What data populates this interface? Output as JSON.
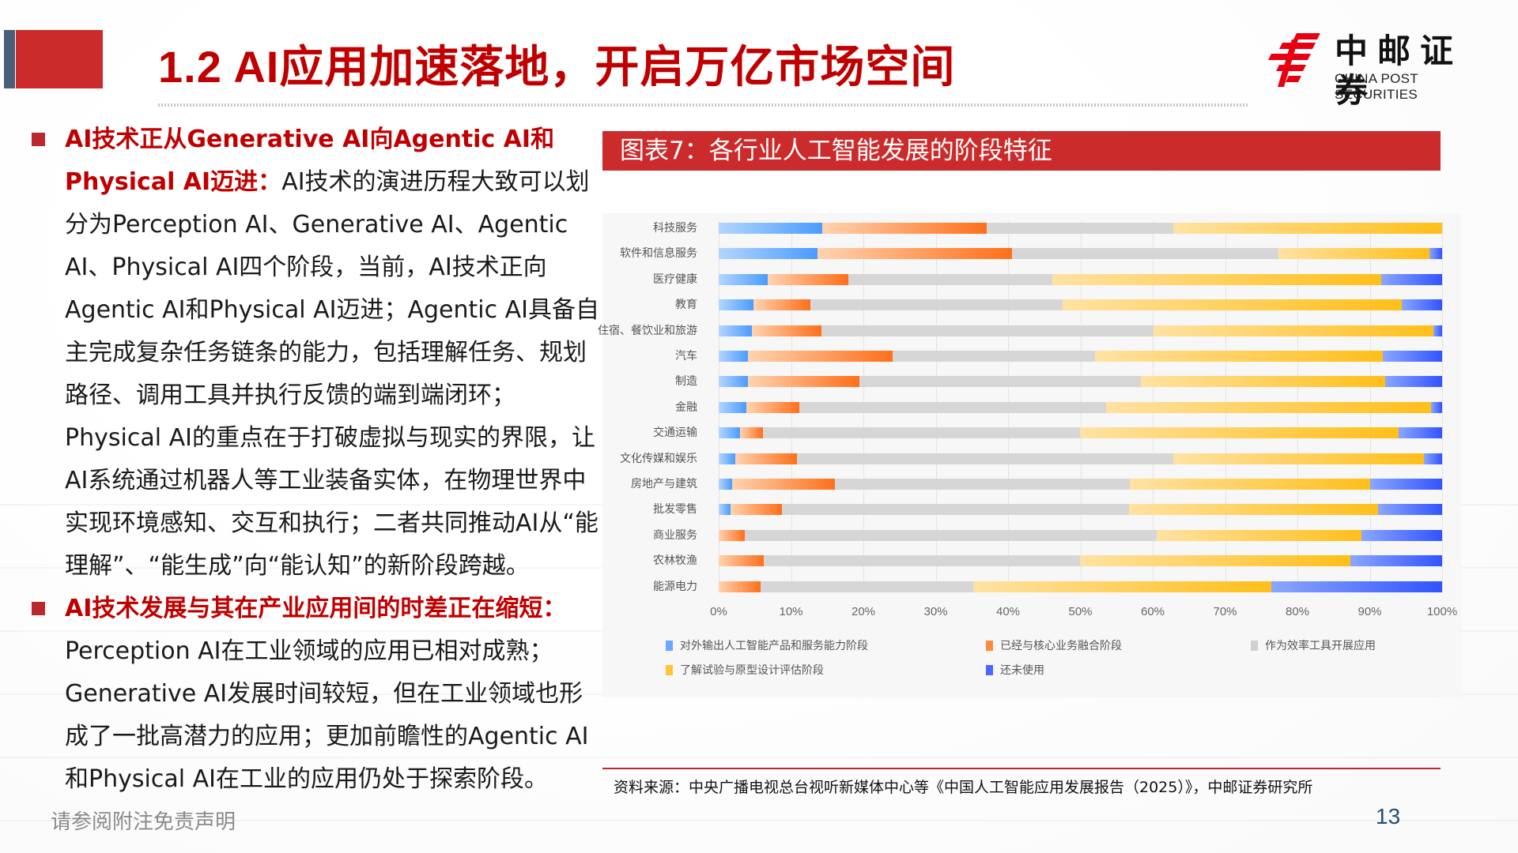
{
  "header": {
    "title": "1.2 AI应用加速落地，开启万亿市场空间",
    "logo_cn": "中邮证券",
    "logo_en": "CHINA POST SECURITIES"
  },
  "left": {
    "bullets": [
      {
        "highlight": "AI技术正从Generative AI向Agentic AI和Physical AI迈进：",
        "body": "AI技术的演进历程大致可以划分为Perception AI、Generative AI、Agentic AI、Physical AI四个阶段，当前，AI技术正向Agentic AI和Physical AI迈进；Agentic AI具备自主完成复杂任务链条的能力，包括理解任务、规划路径、调用工具并执行反馈的端到端闭环；Physical AI的重点在于打破虚拟与现实的界限，让AI系统通过机器人等工业装备实体，在物理世界中实现环境感知、交互和执行；二者共同推动AI从“能理解”、“能生成”向“能认知”的新阶段跨越。"
      },
      {
        "highlight": "AI技术发展与其在产业应用间的时差正在缩短：",
        "body": "Perception AI在工业领域的应用已相对成熟；Generative AI发展时间较短，但在工业领域也形成了一批高潜力的应用；更加前瞻性的Agentic AI和Physical AI在工业的应用仍处于探索阶段。"
      }
    ]
  },
  "figure": {
    "title": "图表7：各行业人工智能发展的阶段特征",
    "source": "资料来源：中央广播电视总台视听新媒体中心等《中国人工智能应用发展报告（2025）》，中邮证券研究所"
  },
  "footer": {
    "disclaimer": "请参阅附注免责声明",
    "page_number": "13"
  },
  "chart_data": {
    "type": "bar",
    "orientation": "horizontal",
    "stacked": "percent",
    "title": "图表7：各行业人工智能发展的阶段特征",
    "xlabel": "",
    "ylabel": "",
    "xlim": [
      0,
      100
    ],
    "xticks": [
      "0%",
      "10%",
      "20%",
      "30%",
      "40%",
      "50%",
      "60%",
      "70%",
      "80%",
      "90%",
      "100%"
    ],
    "grid": true,
    "legend_position": "bottom",
    "categories": [
      "科技服务",
      "软件和信息服务",
      "医疗健康",
      "教育",
      "住宿、餐饮业和旅游",
      "汽车",
      "制造",
      "金融",
      "交通运输",
      "文化传媒和娱乐",
      "房地产与建筑",
      "批发零售",
      "商业服务",
      "农林牧渔",
      "能源电力"
    ],
    "series": [
      {
        "name": "对外输出人工智能产品和服务能力阶段",
        "color": "#4a9bff",
        "values": [
          14.3,
          13.7,
          6.8,
          4.8,
          4.6,
          4.0,
          4.0,
          3.8,
          2.9,
          2.3,
          1.9,
          1.6,
          0,
          0,
          0
        ]
      },
      {
        "name": "已经与核心业务融合阶段",
        "color": "#ff6f1a",
        "values": [
          22.8,
          26.9,
          11.1,
          7.9,
          9.6,
          20.0,
          15.4,
          7.4,
          3.2,
          8.5,
          14.2,
          7.1,
          3.6,
          6.2,
          5.8
        ]
      },
      {
        "name": "作为效率工具开展应用",
        "color": "#d6d6d6",
        "values": [
          25.7,
          36.8,
          28.2,
          34.8,
          45.9,
          28.0,
          39.0,
          42.3,
          43.8,
          52.0,
          40.7,
          48.0,
          56.9,
          43.7,
          29.4
        ]
      },
      {
        "name": "了解试验与原型设计评估阶段",
        "color": "#ffbf1a",
        "values": [
          37.2,
          20.8,
          45.5,
          46.9,
          38.7,
          39.8,
          33.7,
          45.0,
          44.1,
          34.7,
          33.3,
          34.5,
          28.3,
          37.4,
          41.2
        ]
      },
      {
        "name": "还未使用",
        "color": "#3154ff",
        "values": [
          0,
          1.8,
          8.4,
          5.6,
          1.2,
          8.2,
          7.9,
          1.5,
          6.0,
          2.5,
          9.9,
          8.8,
          11.2,
          12.7,
          23.6
        ]
      }
    ]
  }
}
